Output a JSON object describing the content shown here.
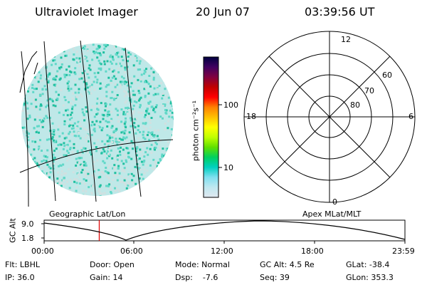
{
  "header": {
    "instrument": "Ultraviolet Imager",
    "date": "20 Jun 07",
    "time": "03:39:56 UT"
  },
  "colorbar": {
    "label": "photon cm⁻²s⁻¹",
    "ticks": [
      "100",
      "10"
    ],
    "scale": "log",
    "colors": [
      "#000040",
      "#400060",
      "#800040",
      "#c00000",
      "#ff0000",
      "#ff8000",
      "#ffc000",
      "#ffff00",
      "#c0ff00",
      "#60e000",
      "#00d060",
      "#00d0c0",
      "#80e0f0",
      "#c0e8f0",
      "#e0e8f0"
    ]
  },
  "map_panel": {
    "label": "Geographic Lat/Lon",
    "colors": {
      "pixels_main": "#60d8c8",
      "pixels_alt": "#20c0a0",
      "pixels_faint": "#d0e0e0"
    }
  },
  "polar_panel": {
    "label": "Apex MLat/MLT",
    "mlt_labels": {
      "top": "12",
      "left": "18",
      "right": "6",
      "bottom": "0"
    },
    "lat_labels": [
      "60",
      "70",
      "80"
    ]
  },
  "timeline": {
    "ylabel": "GC Alt",
    "yticks": [
      "9.0",
      "1.8"
    ],
    "xticks": [
      "00:00",
      "06:00",
      "12:00",
      "18:00",
      "23:59"
    ],
    "marker_time_hours": 3.666,
    "marker_color": "#e00000"
  },
  "info": {
    "flt": "Flt: LBHL",
    "ip": "IP: 36.0",
    "door": "Door: Open",
    "gain": "Gain: 14",
    "mode": "Mode: Normal",
    "dsp": "Dsp:    -7.6",
    "gcalt": "GC Alt: 4.5 Re",
    "seq": "Seq: 39",
    "glat": "GLat: -38.4",
    "glon": "GLon: 353.3"
  }
}
